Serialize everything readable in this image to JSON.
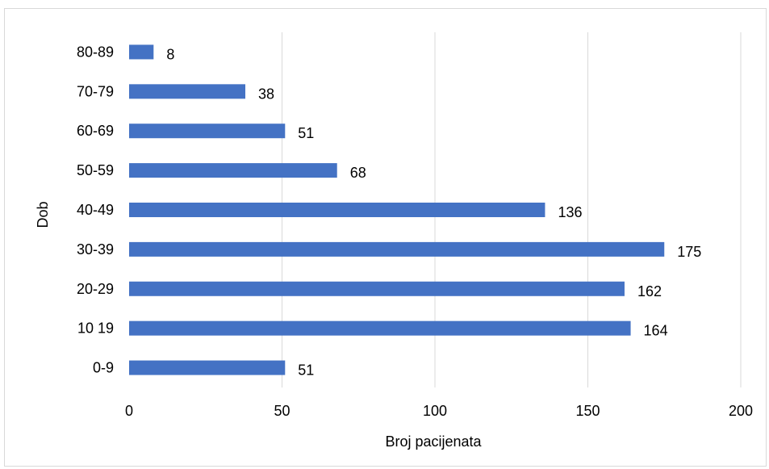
{
  "chart_data": {
    "type": "bar",
    "orientation": "horizontal",
    "categories": [
      "0-9",
      "10 19",
      "20-29",
      "30-39",
      "40-49",
      "50-59",
      "60-69",
      "70-79",
      "80-89"
    ],
    "values": [
      51,
      164,
      162,
      175,
      136,
      68,
      51,
      38,
      8
    ],
    "xlabel": "Broj pacijenata",
    "ylabel": "Dob",
    "xlim": [
      0,
      200
    ],
    "xticks": [
      0,
      50,
      100,
      150,
      200
    ],
    "grid": true,
    "data_labels": true,
    "colors": {
      "bar": "#4472C4",
      "grid": "#d9d9d9"
    }
  }
}
